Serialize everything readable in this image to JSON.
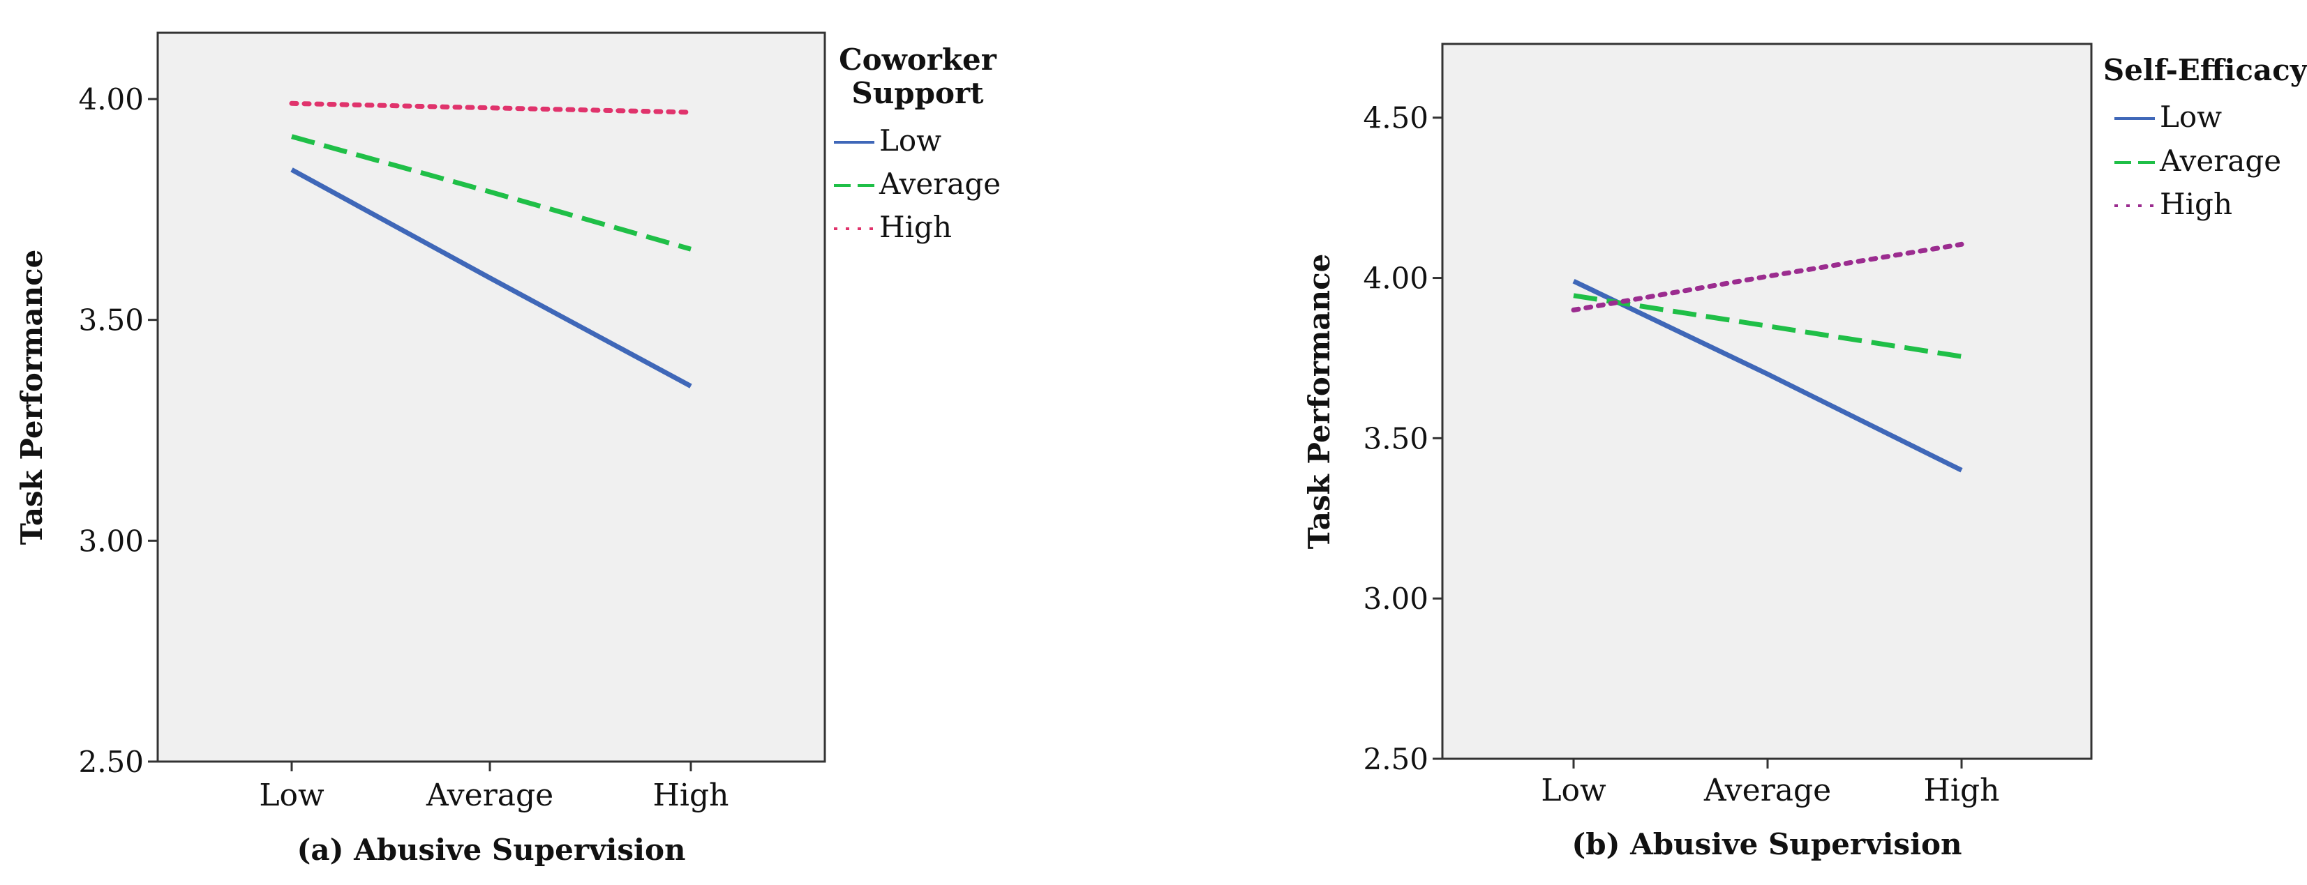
{
  "chart_data": [
    {
      "type": "line",
      "xlabel": "(a) Abusive Supervision",
      "ylabel": "Task Performance",
      "categories": [
        "Low",
        "Average",
        "High"
      ],
      "ylim": [
        2.5,
        4.15
      ],
      "yticks": [
        "2.50",
        "3.00",
        "3.50",
        "4.00"
      ],
      "grid": false,
      "legend_title": "Coworker Support",
      "legend_position": "right",
      "series": [
        {
          "name": "Low",
          "values": [
            3.84,
            3.595,
            3.35
          ],
          "color": "#3f67b8",
          "dash": "solid"
        },
        {
          "name": "Average",
          "values": [
            3.915,
            3.79,
            3.66
          ],
          "color": "#1fbf47",
          "dash": "dashed"
        },
        {
          "name": "High",
          "values": [
            3.99,
            3.98,
            3.97
          ],
          "color": "#e0336c",
          "dash": "dotted"
        }
      ]
    },
    {
      "type": "line",
      "xlabel": "(b) Abusive Supervision",
      "ylabel": "Task Performance",
      "categories": [
        "Low",
        "Average",
        "High"
      ],
      "ylim": [
        2.5,
        4.73
      ],
      "yticks": [
        "2.50",
        "3.00",
        "3.50",
        "4.00",
        "4.50"
      ],
      "grid": false,
      "legend_title": "Self-Efficacy",
      "legend_position": "right",
      "series": [
        {
          "name": "Low",
          "values": [
            3.99,
            3.7,
            3.4
          ],
          "color": "#3f67b8",
          "dash": "solid"
        },
        {
          "name": "Average",
          "values": [
            3.945,
            3.85,
            3.755
          ],
          "color": "#1fbf47",
          "dash": "dashed"
        },
        {
          "name": "High",
          "values": [
            3.9,
            4.005,
            4.105
          ],
          "color": "#9b2c8f",
          "dash": "dotted"
        }
      ]
    }
  ]
}
